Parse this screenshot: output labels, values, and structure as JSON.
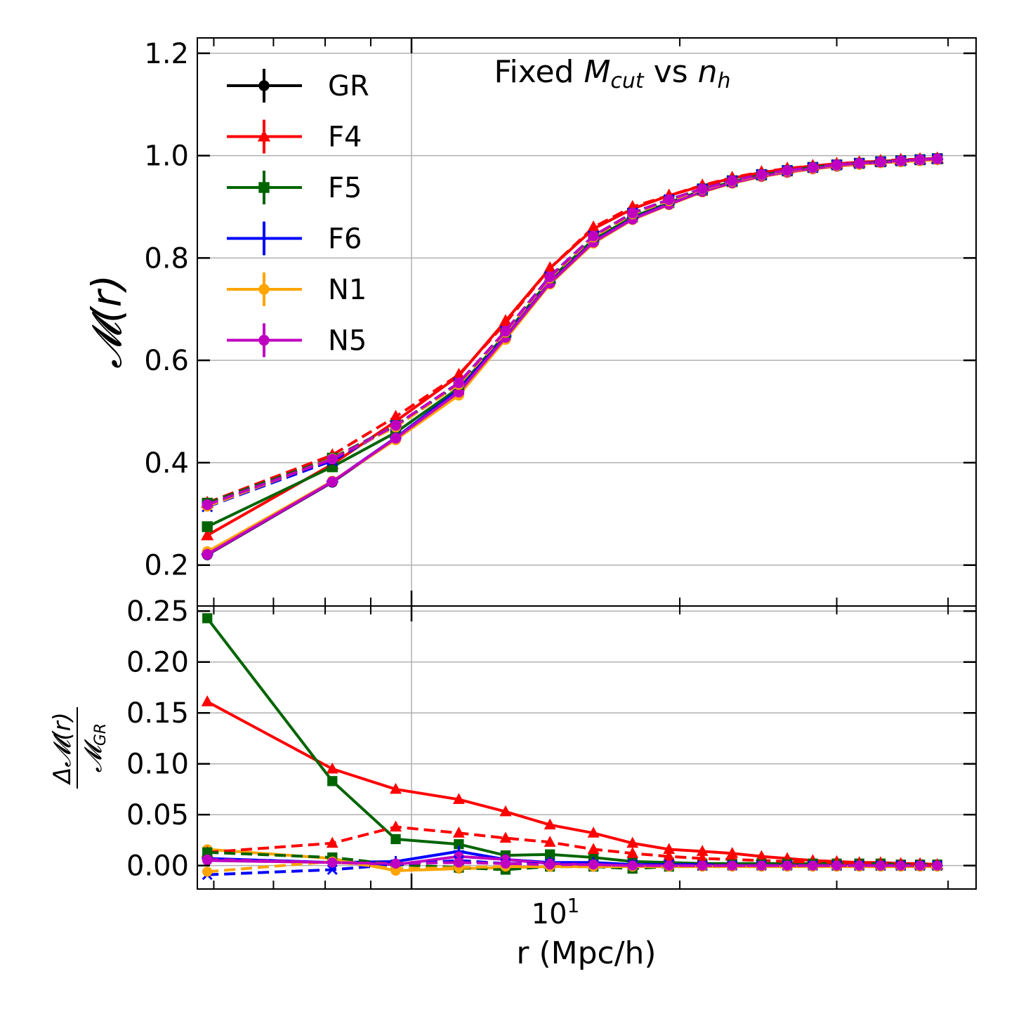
{
  "chart_data": [
    {
      "panel": "top",
      "type": "line",
      "title": "Fixed M_cut vs n_h",
      "title_parts": {
        "prefix": "Fixed ",
        "m": "M",
        "m_sub": "cut",
        "mid": " vs ",
        "n": "n",
        "n_sub": "h"
      },
      "xlabel": "",
      "ylabel": "𝓜(r)",
      "xscale": "log",
      "xlim": [
        5.75,
        43
      ],
      "ylim": [
        0.12,
        1.23
      ],
      "yticks": [
        "0.2",
        "0.4",
        "0.6",
        "0.8",
        "1.0",
        "1.2"
      ],
      "grid": true,
      "legend_position": "top-left",
      "legend": [
        "GR",
        "F4",
        "F5",
        "F6",
        "N1",
        "N5"
      ],
      "x": [
        5.9,
        8.15,
        9.6,
        11.3,
        12.75,
        14.3,
        16.0,
        17.7,
        19.45,
        21.2,
        22.9,
        24.7,
        26.4,
        28.2,
        30.0,
        31.8,
        33.6,
        35.4,
        37.2,
        38.9
      ],
      "series": [
        {
          "name": "GR",
          "style": "solid",
          "color": "#000000",
          "marker": "circle",
          "values": [
            0.22,
            0.362,
            0.447,
            0.535,
            0.643,
            0.75,
            0.83,
            0.876,
            0.905,
            0.93,
            0.947,
            0.96,
            0.968,
            0.975,
            0.98,
            0.984,
            0.987,
            0.989,
            0.991,
            0.993
          ]
        },
        {
          "name": "F4",
          "style": "solid",
          "color": "#ff0000",
          "marker": "triangle",
          "values": [
            0.258,
            0.397,
            0.481,
            0.57,
            0.677,
            0.78,
            0.857,
            0.896,
            0.922,
            0.941,
            0.956,
            0.967,
            0.974,
            0.98,
            0.984,
            0.987,
            0.989,
            0.991,
            0.993,
            0.994
          ]
        },
        {
          "name": "F5",
          "style": "solid",
          "color": "#006400",
          "marker": "square",
          "values": [
            0.275,
            0.392,
            0.459,
            0.546,
            0.651,
            0.758,
            0.836,
            0.88,
            0.908,
            0.932,
            0.949,
            0.962,
            0.97,
            0.977,
            0.982,
            0.985,
            0.988,
            0.99,
            0.992,
            0.994
          ]
        },
        {
          "name": "F6",
          "style": "solid",
          "color": "#0000ff",
          "marker": "plus",
          "values": [
            0.221,
            0.363,
            0.449,
            0.542,
            0.647,
            0.752,
            0.832,
            0.877,
            0.906,
            0.93,
            0.947,
            0.96,
            0.968,
            0.975,
            0.98,
            0.984,
            0.987,
            0.989,
            0.991,
            0.993
          ]
        },
        {
          "name": "N1",
          "style": "solid",
          "color": "#ffa500",
          "marker": "circle",
          "values": [
            0.226,
            0.364,
            0.445,
            0.532,
            0.641,
            0.749,
            0.829,
            0.875,
            0.904,
            0.929,
            0.946,
            0.959,
            0.967,
            0.974,
            0.979,
            0.983,
            0.986,
            0.988,
            0.99,
            0.992
          ]
        },
        {
          "name": "N5",
          "style": "solid",
          "color": "#c000c0",
          "marker": "circle",
          "values": [
            0.221,
            0.363,
            0.448,
            0.538,
            0.645,
            0.751,
            0.831,
            0.876,
            0.905,
            0.93,
            0.947,
            0.96,
            0.968,
            0.975,
            0.98,
            0.984,
            0.987,
            0.989,
            0.991,
            0.993
          ]
        },
        {
          "name": "GR (dashed)",
          "style": "dashed",
          "color": "#000000",
          "marker": "circle",
          "values": [
            0.317,
            0.406,
            0.472,
            0.554,
            0.656,
            0.762,
            0.842,
            0.887,
            0.913,
            0.935,
            0.951,
            0.963,
            0.971,
            0.977,
            0.982,
            0.985,
            0.988,
            0.99,
            0.992,
            0.994
          ]
        },
        {
          "name": "F4 (dashed)",
          "style": "dashed",
          "color": "#ff0000",
          "marker": "triangle",
          "values": [
            0.322,
            0.415,
            0.49,
            0.572,
            0.673,
            0.78,
            0.86,
            0.9,
            0.922,
            0.942,
            0.957,
            0.968,
            0.975,
            0.98,
            0.984,
            0.987,
            0.99,
            0.992,
            0.993,
            0.995
          ]
        },
        {
          "name": "F5 (dashed)",
          "style": "dashed",
          "color": "#006400",
          "marker": "square",
          "values": [
            0.321,
            0.409,
            0.473,
            0.553,
            0.655,
            0.761,
            0.842,
            0.887,
            0.913,
            0.935,
            0.951,
            0.963,
            0.971,
            0.977,
            0.982,
            0.985,
            0.988,
            0.99,
            0.992,
            0.994
          ]
        },
        {
          "name": "F6 (dashed)",
          "style": "dashed",
          "color": "#0000ff",
          "marker": "cross",
          "values": [
            0.314,
            0.404,
            0.472,
            0.556,
            0.657,
            0.764,
            0.843,
            0.888,
            0.914,
            0.935,
            0.951,
            0.963,
            0.971,
            0.977,
            0.982,
            0.985,
            0.988,
            0.99,
            0.992,
            0.994
          ]
        },
        {
          "name": "N1 (dashed)",
          "style": "dashed",
          "color": "#ffa500",
          "marker": "circle",
          "values": [
            0.315,
            0.408,
            0.47,
            0.553,
            0.655,
            0.761,
            0.841,
            0.886,
            0.912,
            0.934,
            0.95,
            0.962,
            0.97,
            0.976,
            0.981,
            0.984,
            0.987,
            0.989,
            0.991,
            0.993
          ]
        },
        {
          "name": "N5 (dashed)",
          "style": "dashed",
          "color": "#c000c0",
          "marker": "circle",
          "values": [
            0.318,
            0.407,
            0.473,
            0.556,
            0.657,
            0.763,
            0.843,
            0.888,
            0.914,
            0.935,
            0.951,
            0.963,
            0.971,
            0.977,
            0.982,
            0.985,
            0.988,
            0.99,
            0.992,
            0.994
          ]
        }
      ]
    },
    {
      "panel": "bottom",
      "type": "line",
      "xlabel": "r (Mpc/h)",
      "ylabel": "ΔM(r)/M_GR",
      "ylabel_parts": {
        "num": "Δ𝓜(r)",
        "den": "𝓜",
        "den_sub": "GR"
      },
      "xscale": "log",
      "xlim": [
        5.75,
        43
      ],
      "ylim": [
        -0.023,
        0.255
      ],
      "yticks": [
        "0.00",
        "0.05",
        "0.10",
        "0.15",
        "0.20",
        "0.25"
      ],
      "xtick_label": {
        "value": 10,
        "base": "10",
        "exp": "1"
      },
      "grid": true,
      "x": [
        5.9,
        8.15,
        9.6,
        11.3,
        12.75,
        14.3,
        16.0,
        17.7,
        19.45,
        21.2,
        22.9,
        24.7,
        26.4,
        28.2,
        30.0,
        31.8,
        33.6,
        35.4,
        37.2,
        38.9
      ],
      "series": [
        {
          "name": "F4",
          "style": "solid",
          "color": "#ff0000",
          "marker": "triangle",
          "values": [
            0.161,
            0.095,
            0.075,
            0.065,
            0.053,
            0.04,
            0.032,
            0.022,
            0.016,
            0.014,
            0.012,
            0.009,
            0.007,
            0.005,
            0.004,
            0.003,
            0.003,
            0.002,
            0.002,
            0.001
          ]
        },
        {
          "name": "F5",
          "style": "solid",
          "color": "#006400",
          "marker": "square",
          "values": [
            0.243,
            0.083,
            0.026,
            0.021,
            0.01,
            0.011,
            0.008,
            0.004,
            0.003,
            0.002,
            0.002,
            0.002,
            0.002,
            0.002,
            0.002,
            0.002,
            0.002,
            0.001,
            0.001,
            0.001
          ]
        },
        {
          "name": "F6",
          "style": "solid",
          "color": "#0000ff",
          "marker": "plus",
          "values": [
            0.007,
            0.003,
            0.004,
            0.014,
            0.006,
            0.003,
            0.003,
            0.001,
            0.001,
            0.001,
            0.0,
            0.0,
            0.0,
            0.0,
            0.0,
            0.0,
            0.0,
            0.0,
            0.0,
            0.0
          ]
        },
        {
          "name": "N1",
          "style": "solid",
          "color": "#ffa500",
          "marker": "circle",
          "values": [
            0.016,
            0.007,
            -0.005,
            -0.003,
            -0.002,
            -0.001,
            -0.001,
            -0.001,
            -0.001,
            -0.001,
            -0.001,
            -0.001,
            -0.001,
            -0.001,
            -0.001,
            -0.001,
            -0.001,
            -0.001,
            -0.001,
            -0.001
          ]
        },
        {
          "name": "N5",
          "style": "solid",
          "color": "#c000c0",
          "marker": "circle",
          "values": [
            0.005,
            0.003,
            0.001,
            0.009,
            0.006,
            0.002,
            0.001,
            0.0,
            0.0,
            0.0,
            0.0,
            0.0,
            0.0,
            0.0,
            0.0,
            0.0,
            0.0,
            0.0,
            0.0,
            0.0
          ]
        },
        {
          "name": "F4 (dashed)",
          "style": "dashed",
          "color": "#ff0000",
          "marker": "triangle",
          "values": [
            0.013,
            0.022,
            0.038,
            0.032,
            0.027,
            0.023,
            0.016,
            0.012,
            0.009,
            0.007,
            0.006,
            0.005,
            0.004,
            0.003,
            0.003,
            0.002,
            0.002,
            0.002,
            0.001,
            0.001
          ]
        },
        {
          "name": "F5 (dashed)",
          "style": "dashed",
          "color": "#006400",
          "marker": "square",
          "values": [
            0.013,
            0.008,
            0.001,
            -0.002,
            -0.004,
            -0.001,
            -0.001,
            -0.003,
            -0.001,
            0.0,
            0.001,
            0.001,
            0.001,
            0.001,
            0.0,
            0.0,
            0.0,
            0.0,
            0.0,
            0.0
          ]
        },
        {
          "name": "F6 (dashed)",
          "style": "dashed",
          "color": "#0000ff",
          "marker": "cross",
          "values": [
            -0.009,
            -0.004,
            0.001,
            0.005,
            0.002,
            0.002,
            0.001,
            0.001,
            0.001,
            0.0,
            0.0,
            0.0,
            0.0,
            0.0,
            0.0,
            0.0,
            0.0,
            0.0,
            0.0,
            0.0
          ]
        },
        {
          "name": "N1 (dashed)",
          "style": "dashed",
          "color": "#ffa500",
          "marker": "circle",
          "values": [
            -0.006,
            0.004,
            -0.003,
            -0.002,
            -0.001,
            -0.001,
            -0.001,
            -0.001,
            -0.001,
            -0.001,
            -0.001,
            -0.001,
            -0.001,
            -0.001,
            -0.001,
            -0.001,
            -0.001,
            -0.001,
            -0.001,
            -0.001
          ]
        },
        {
          "name": "N5 (dashed)",
          "style": "dashed",
          "color": "#c000c0",
          "marker": "circle",
          "values": [
            0.006,
            0.003,
            0.002,
            0.003,
            0.002,
            0.001,
            0.001,
            0.0,
            0.0,
            0.0,
            0.0,
            0.0,
            0.0,
            0.0,
            0.0,
            0.0,
            0.0,
            0.0,
            0.0,
            0.0
          ]
        }
      ]
    }
  ]
}
